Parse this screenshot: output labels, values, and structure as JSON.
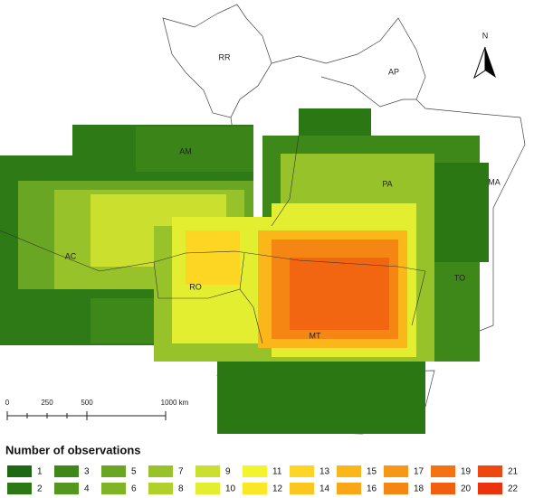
{
  "map": {
    "states": [
      "RR",
      "AP",
      "AM",
      "PA",
      "MA",
      "AC",
      "RO",
      "MT",
      "TO"
    ],
    "north_arrow": "N",
    "scale_bar": [
      "0",
      "250",
      "500",
      "1000 km"
    ]
  },
  "legend": {
    "title": "Number of observations",
    "items": [
      {
        "label": 1,
        "color": "#1b6a12"
      },
      {
        "label": 2,
        "color": "#2b7815"
      },
      {
        "label": 3,
        "color": "#3e8819"
      },
      {
        "label": 4,
        "color": "#53971e"
      },
      {
        "label": 5,
        "color": "#68a623"
      },
      {
        "label": 6,
        "color": "#7fb426"
      },
      {
        "label": 7,
        "color": "#97c22a"
      },
      {
        "label": 8,
        "color": "#b0d02c"
      },
      {
        "label": 9,
        "color": "#cbe02e"
      },
      {
        "label": 10,
        "color": "#e4ee30"
      },
      {
        "label": 11,
        "color": "#f4f42c"
      },
      {
        "label": 12,
        "color": "#fae826"
      },
      {
        "label": 13,
        "color": "#fcd622"
      },
      {
        "label": 14,
        "color": "#fcc61e"
      },
      {
        "label": 15,
        "color": "#fbb61a"
      },
      {
        "label": 16,
        "color": "#faa618"
      },
      {
        "label": 17,
        "color": "#f89616"
      },
      {
        "label": 18,
        "color": "#f68614"
      },
      {
        "label": 19,
        "color": "#f47212"
      },
      {
        "label": 20,
        "color": "#f25e10"
      },
      {
        "label": 21,
        "color": "#ef480e"
      },
      {
        "label": 22,
        "color": "#ec320c"
      }
    ]
  }
}
